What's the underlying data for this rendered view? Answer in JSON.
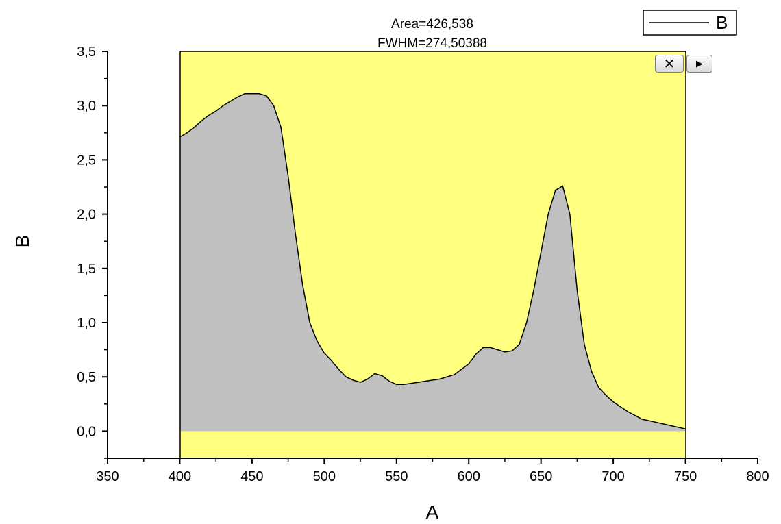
{
  "chart_data": {
    "type": "area",
    "xlabel": "A",
    "ylabel": "B",
    "xlim": [
      350,
      800
    ],
    "ylim": [
      -0.25,
      3.5
    ],
    "xticks": [
      350,
      400,
      450,
      500,
      550,
      600,
      650,
      700,
      750,
      800
    ],
    "xtick_labels": [
      "350",
      "400",
      "450",
      "500",
      "550",
      "600",
      "650",
      "700",
      "750",
      "800"
    ],
    "yticks": [
      0.0,
      0.5,
      1.0,
      1.5,
      2.0,
      2.5,
      3.0,
      3.5
    ],
    "ytick_labels": [
      "0,0",
      "0,5",
      "1,0",
      "1,5",
      "2,0",
      "2,5",
      "3,0",
      "3,5"
    ],
    "integration_range": [
      400,
      750
    ],
    "annotations": [
      "Area=426,538",
      "FWHM=274,50388"
    ],
    "legend": {
      "position": "top-right",
      "entries": [
        "B"
      ]
    },
    "colors": {
      "range_background": "#ffff80",
      "area_fill": "#c0c0c0",
      "line": "#000000"
    },
    "series": [
      {
        "name": "B",
        "x": [
          400,
          405,
          410,
          415,
          420,
          425,
          430,
          435,
          440,
          445,
          450,
          455,
          460,
          465,
          470,
          475,
          480,
          485,
          490,
          495,
          500,
          505,
          510,
          515,
          520,
          525,
          530,
          535,
          540,
          545,
          550,
          555,
          560,
          570,
          580,
          590,
          600,
          605,
          610,
          615,
          620,
          625,
          630,
          635,
          640,
          645,
          650,
          655,
          660,
          665,
          670,
          675,
          680,
          685,
          690,
          695,
          700,
          710,
          720,
          730,
          740,
          750
        ],
        "y": [
          2.71,
          2.75,
          2.8,
          2.86,
          2.91,
          2.95,
          3.0,
          3.04,
          3.08,
          3.11,
          3.11,
          3.11,
          3.09,
          3.0,
          2.8,
          2.35,
          1.82,
          1.35,
          1.0,
          0.83,
          0.72,
          0.65,
          0.57,
          0.5,
          0.47,
          0.45,
          0.48,
          0.53,
          0.51,
          0.46,
          0.43,
          0.43,
          0.44,
          0.46,
          0.48,
          0.52,
          0.62,
          0.71,
          0.77,
          0.77,
          0.75,
          0.73,
          0.74,
          0.8,
          1.0,
          1.3,
          1.65,
          2.0,
          2.22,
          2.26,
          2.0,
          1.3,
          0.8,
          0.55,
          0.4,
          0.33,
          0.27,
          0.18,
          0.11,
          0.08,
          0.05,
          0.02
        ]
      }
    ]
  },
  "controls": {
    "close_label": "✕",
    "play_label": "▶"
  }
}
